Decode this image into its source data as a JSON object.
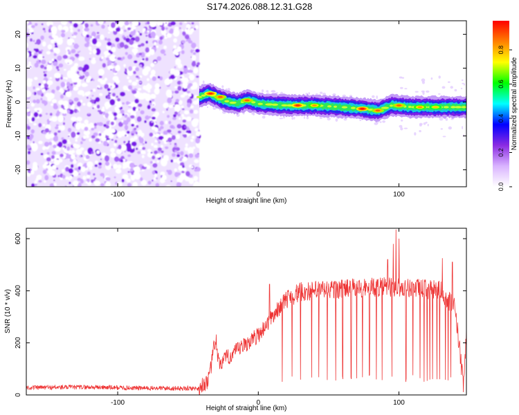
{
  "figure_title": "S174.2026.088.12.31.G28",
  "chart_data": [
    {
      "type": "heatmap",
      "title": "S174.2026.088.12.31.G28",
      "xlabel": "Height of straight line (km)",
      "ylabel": "Frequency (Hz)",
      "xlim": [
        -165,
        148
      ],
      "ylim": [
        -25,
        24
      ],
      "x_ticks": [
        -100,
        0,
        100
      ],
      "y_ticks": [
        -20,
        -10,
        0,
        10,
        20
      ],
      "x_tick_labels": [
        "-100",
        "0",
        "100"
      ],
      "y_tick_labels": [
        "-20",
        "-10",
        "0",
        "10",
        "20"
      ],
      "colorbar": {
        "label": "Normalized spectral amplitude",
        "range": [
          0,
          0.97
        ],
        "ticks": [
          0,
          0.2,
          0.4,
          0.6,
          0.8
        ],
        "tick_labels": [
          "0.0",
          "0.2",
          "0.4",
          "0.6",
          "0.8"
        ],
        "colors": [
          "#ffffff",
          "#d9b3ff",
          "#8a2be2",
          "#0000ff",
          "#00ffff",
          "#00ff00",
          "#ffff00",
          "#ff8000",
          "#ff0000"
        ]
      },
      "noise_region_x": [
        -165,
        -42
      ],
      "signal_region_x": [
        -42,
        148
      ],
      "signal_track": [
        {
          "x": -42,
          "f": 1.5
        },
        {
          "x": -35,
          "f": 2.5
        },
        {
          "x": -25,
          "f": 0.5
        },
        {
          "x": -15,
          "f": -0.5
        },
        {
          "x": -8,
          "f": 0.5
        },
        {
          "x": 0,
          "f": -0.5
        },
        {
          "x": 20,
          "f": -1.0
        },
        {
          "x": 40,
          "f": -1.0
        },
        {
          "x": 60,
          "f": -1.5
        },
        {
          "x": 75,
          "f": -2.0
        },
        {
          "x": 85,
          "f": -2.5
        },
        {
          "x": 95,
          "f": -1.0
        },
        {
          "x": 110,
          "f": -1.5
        },
        {
          "x": 125,
          "f": -1.5
        },
        {
          "x": 148,
          "f": -1.5
        }
      ],
      "hot_spots": [
        {
          "x": -34,
          "f": 2.5,
          "amp": 0.95
        },
        {
          "x": -27,
          "f": 1.5,
          "amp": 0.9
        },
        {
          "x": -8,
          "f": 0.5,
          "amp": 0.9
        },
        {
          "x": 28,
          "f": -1.0,
          "amp": 0.95
        },
        {
          "x": 40,
          "f": -1.0,
          "amp": 0.85
        },
        {
          "x": 74,
          "f": -2.0,
          "amp": 0.97
        },
        {
          "x": 85,
          "f": -2.5,
          "amp": 0.9
        },
        {
          "x": 100,
          "f": -1.0,
          "amp": 0.9
        },
        {
          "x": 115,
          "f": -1.5,
          "amp": 0.85
        },
        {
          "x": 126,
          "f": -1.5,
          "amp": 0.8
        }
      ]
    },
    {
      "type": "line",
      "xlabel": "Height of straight line (km)",
      "ylabel": "SNR (10 * v/v)",
      "xlim": [
        -165,
        148
      ],
      "ylim": [
        0,
        640
      ],
      "x_ticks": [
        -100,
        0,
        100
      ],
      "y_ticks": [
        0,
        200,
        400,
        600
      ],
      "x_tick_labels": [
        "-100",
        "0",
        "100"
      ],
      "y_tick_labels": [
        "0",
        "200",
        "400",
        "600"
      ],
      "line_color": "#ee3333",
      "snr_profile": [
        {
          "x": -165,
          "snr": 28
        },
        {
          "x": -120,
          "snr": 30
        },
        {
          "x": -80,
          "snr": 26
        },
        {
          "x": -42,
          "snr": 25
        },
        {
          "x": -35,
          "snr": 60
        },
        {
          "x": -31,
          "snr": 200
        },
        {
          "x": -28,
          "snr": 120
        },
        {
          "x": -20,
          "snr": 150
        },
        {
          "x": -10,
          "snr": 190
        },
        {
          "x": 0,
          "snr": 230
        },
        {
          "x": 10,
          "snr": 300
        },
        {
          "x": 20,
          "snr": 370
        },
        {
          "x": 30,
          "snr": 395
        },
        {
          "x": 50,
          "snr": 405
        },
        {
          "x": 70,
          "snr": 410
        },
        {
          "x": 90,
          "snr": 415
        },
        {
          "x": 110,
          "snr": 410
        },
        {
          "x": 130,
          "snr": 400
        },
        {
          "x": 140,
          "snr": 330
        },
        {
          "x": 145,
          "snr": 80
        },
        {
          "x": 146,
          "snr": 25
        },
        {
          "x": 148,
          "snr": 250
        }
      ],
      "dropouts_x": [
        17,
        24,
        30,
        38,
        43,
        49,
        55,
        60,
        66,
        70,
        74,
        79,
        84,
        88,
        92,
        95,
        105,
        110,
        115,
        118,
        120,
        122,
        124,
        127,
        129,
        131,
        133,
        135,
        137
      ],
      "spikes": [
        {
          "x": -30,
          "snr": 232
        },
        {
          "x": 8,
          "snr": 425
        },
        {
          "x": 92,
          "snr": 520
        },
        {
          "x": 96,
          "snr": 580
        },
        {
          "x": 98,
          "snr": 635
        },
        {
          "x": 100,
          "snr": 600
        },
        {
          "x": 131,
          "snr": 525
        },
        {
          "x": 138,
          "snr": 510
        }
      ]
    }
  ]
}
